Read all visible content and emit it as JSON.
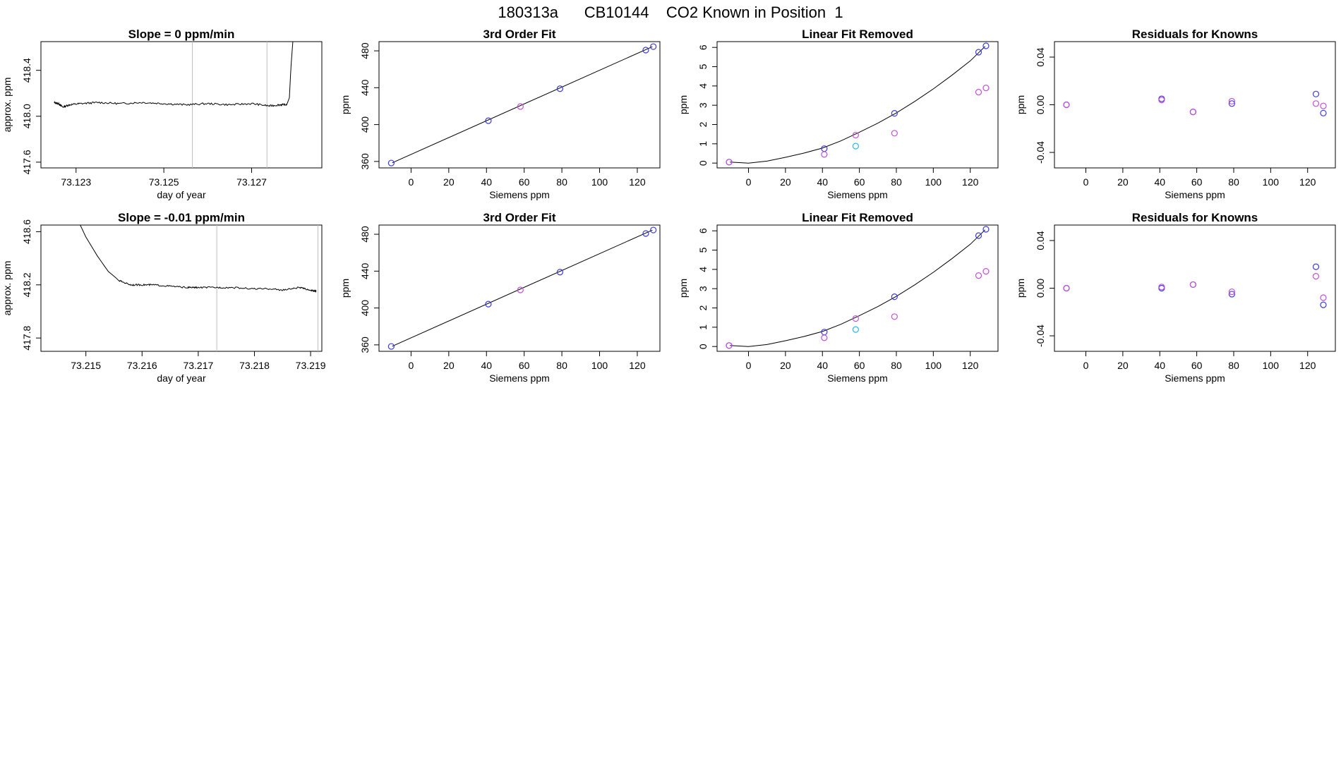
{
  "figure": {
    "title": "180313a      CB10144    CO2 Known in Position  1",
    "colors": {
      "line": "#000000",
      "frame": "#000000",
      "vline": "#bebebe",
      "blue": "#3a3adf",
      "violet": "#c24fd6",
      "cyan": "#2ab6ea"
    }
  },
  "chart_data": [
    {
      "id": "slope-1",
      "type": "line",
      "title": "Slope =  0  ppm/min",
      "xlabel": "day of year",
      "ylabel": "approx. ppm",
      "xlim": [
        73.1222,
        73.1286
      ],
      "ylim": [
        417.55,
        418.65
      ],
      "xticks": [
        73.123,
        73.125,
        73.127
      ],
      "yticks": [
        417.6,
        418.0,
        418.4
      ],
      "vlines": [
        73.12565,
        73.12735
      ],
      "series": [
        {
          "name": "analyzer signal",
          "x": [
            73.1225,
            73.1226,
            73.1227,
            73.12285,
            73.1231,
            73.1235,
            73.124,
            73.1245,
            73.125,
            73.1255,
            73.126,
            73.1265,
            73.127,
            73.1274,
            73.12765,
            73.1278,
            73.12786,
            73.1279,
            73.12795
          ],
          "y": [
            418.12,
            418.11,
            418.08,
            418.1,
            418.11,
            418.12,
            418.11,
            418.12,
            418.11,
            418.1,
            418.11,
            418.1,
            418.11,
            418.09,
            418.1,
            418.1,
            418.16,
            418.45,
            418.7
          ],
          "noise": 0.008
        }
      ]
    },
    {
      "id": "fit-1",
      "type": "scatter",
      "title": "3rd Order Fit",
      "xlabel": "Siemens ppm",
      "ylabel": "ppm",
      "xlim": [
        -17,
        132
      ],
      "ylim": [
        353,
        490
      ],
      "xticks": [
        0,
        20,
        40,
        60,
        80,
        100,
        120
      ],
      "yticks": [
        360,
        400,
        440,
        480
      ],
      "fit_line": {
        "x": [
          -10,
          128
        ],
        "y": [
          358.5,
          484.5
        ]
      },
      "points": [
        {
          "x": -10.5,
          "y": 358.3,
          "c": "blue"
        },
        {
          "x": 41,
          "y": 404.2,
          "c": "blue"
        },
        {
          "x": 58,
          "y": 419.6,
          "c": "violet"
        },
        {
          "x": 79,
          "y": 438.9,
          "c": "blue"
        },
        {
          "x": 124.5,
          "y": 480.8,
          "c": "blue"
        },
        {
          "x": 128.5,
          "y": 484.6,
          "c": "blue"
        }
      ]
    },
    {
      "id": "linear-1",
      "type": "scatter",
      "title": "Linear Fit Removed",
      "xlabel": "Siemens ppm",
      "ylabel": "ppm",
      "xlim": [
        -17,
        135
      ],
      "ylim": [
        -0.25,
        6.3
      ],
      "xticks": [
        0,
        20,
        40,
        60,
        80,
        100,
        120
      ],
      "yticks": [
        0,
        1,
        2,
        3,
        4,
        5,
        6
      ],
      "curve": {
        "x": [
          -10,
          0,
          10,
          20,
          30,
          40,
          50,
          60,
          70,
          80,
          90,
          100,
          110,
          120,
          128
        ],
        "y": [
          0.05,
          0,
          0.1,
          0.3,
          0.52,
          0.78,
          1.15,
          1.6,
          2.07,
          2.6,
          3.2,
          3.85,
          4.55,
          5.3,
          6.05
        ]
      },
      "points": [
        {
          "x": -10.5,
          "y": 0.05,
          "c": "blue"
        },
        {
          "x": -10.5,
          "y": 0.05,
          "c": "violet"
        },
        {
          "x": 41,
          "y": 0.75,
          "c": "blue"
        },
        {
          "x": 41,
          "y": 0.45,
          "c": "violet"
        },
        {
          "x": 58,
          "y": 1.45,
          "c": "violet"
        },
        {
          "x": 58,
          "y": 0.88,
          "c": "cyan"
        },
        {
          "x": 79,
          "y": 2.58,
          "c": "blue"
        },
        {
          "x": 79,
          "y": 1.55,
          "c": "violet"
        },
        {
          "x": 124.5,
          "y": 5.75,
          "c": "blue"
        },
        {
          "x": 124.5,
          "y": 3.68,
          "c": "violet"
        },
        {
          "x": 128.5,
          "y": 6.08,
          "c": "blue"
        },
        {
          "x": 128.5,
          "y": 3.9,
          "c": "violet"
        }
      ]
    },
    {
      "id": "resid-1",
      "type": "scatter",
      "title": "Residuals for Knowns",
      "xlabel": "Siemens ppm",
      "ylabel": "ppm",
      "xlim": [
        -17,
        135
      ],
      "ylim": [
        -0.053,
        0.053
      ],
      "xticks": [
        0,
        20,
        40,
        60,
        80,
        100,
        120
      ],
      "yticks": [
        -0.04,
        0.0,
        0.04
      ],
      "ytick_labels": [
        "-0.04",
        "0.00",
        "0.04"
      ],
      "points": [
        {
          "x": -10.5,
          "y": 0.0,
          "c": "blue"
        },
        {
          "x": -10.5,
          "y": 0.0,
          "c": "violet"
        },
        {
          "x": 41,
          "y": 0.005,
          "c": "blue"
        },
        {
          "x": 41,
          "y": 0.004,
          "c": "violet"
        },
        {
          "x": 58,
          "y": -0.006,
          "c": "blue"
        },
        {
          "x": 58,
          "y": -0.006,
          "c": "violet"
        },
        {
          "x": 79,
          "y": 0.001,
          "c": "blue"
        },
        {
          "x": 79,
          "y": 0.003,
          "c": "violet"
        },
        {
          "x": 124.5,
          "y": 0.009,
          "c": "blue"
        },
        {
          "x": 124.5,
          "y": 0.001,
          "c": "violet"
        },
        {
          "x": 128.5,
          "y": -0.007,
          "c": "blue"
        },
        {
          "x": 128.5,
          "y": -0.001,
          "c": "violet"
        }
      ]
    },
    {
      "id": "slope-2",
      "type": "line",
      "title": "Slope =  -0.01  ppm/min",
      "xlabel": "day of year",
      "ylabel": "approx. ppm",
      "xlim": [
        73.2142,
        73.2192
      ],
      "ylim": [
        417.7,
        418.65
      ],
      "xticks": [
        73.215,
        73.216,
        73.217,
        73.218,
        73.219
      ],
      "yticks": [
        417.8,
        418.2,
        418.6
      ],
      "vlines": [
        73.21733,
        73.21913
      ],
      "series": [
        {
          "name": "analyzer signal",
          "x": [
            73.2149,
            73.215,
            73.2152,
            73.2154,
            73.2156,
            73.2158,
            73.216,
            73.2162,
            73.2165,
            73.2168,
            73.217,
            73.2173,
            73.2176,
            73.218,
            73.2183,
            73.2185,
            73.2188,
            73.219,
            73.2191
          ],
          "y": [
            418.65,
            418.56,
            418.42,
            418.3,
            418.23,
            418.2,
            418.2,
            418.2,
            418.19,
            418.18,
            418.18,
            418.18,
            418.18,
            418.17,
            418.17,
            418.16,
            418.18,
            418.16,
            418.15
          ],
          "noise": 0.006
        }
      ]
    },
    {
      "id": "fit-2",
      "type": "scatter",
      "title": "3rd Order Fit",
      "xlabel": "Siemens ppm",
      "ylabel": "ppm",
      "xlim": [
        -17,
        132
      ],
      "ylim": [
        353,
        490
      ],
      "xticks": [
        0,
        20,
        40,
        60,
        80,
        100,
        120
      ],
      "yticks": [
        360,
        400,
        440,
        480
      ],
      "fit_line": {
        "x": [
          -10,
          128
        ],
        "y": [
          358.5,
          484.5
        ]
      },
      "points": [
        {
          "x": -10.5,
          "y": 358.3,
          "c": "blue"
        },
        {
          "x": 41,
          "y": 404.2,
          "c": "blue"
        },
        {
          "x": 58,
          "y": 419.6,
          "c": "violet"
        },
        {
          "x": 79,
          "y": 438.9,
          "c": "blue"
        },
        {
          "x": 124.5,
          "y": 480.8,
          "c": "blue"
        },
        {
          "x": 128.5,
          "y": 484.6,
          "c": "blue"
        }
      ]
    },
    {
      "id": "linear-2",
      "type": "scatter",
      "title": "Linear Fit Removed",
      "xlabel": "Siemens ppm",
      "ylabel": "ppm",
      "xlim": [
        -17,
        135
      ],
      "ylim": [
        -0.25,
        6.3
      ],
      "xticks": [
        0,
        20,
        40,
        60,
        80,
        100,
        120
      ],
      "yticks": [
        0,
        1,
        2,
        3,
        4,
        5,
        6
      ],
      "curve": {
        "x": [
          -10,
          0,
          10,
          20,
          30,
          40,
          50,
          60,
          70,
          80,
          90,
          100,
          110,
          120,
          128
        ],
        "y": [
          0.05,
          0,
          0.1,
          0.3,
          0.52,
          0.78,
          1.15,
          1.6,
          2.07,
          2.6,
          3.2,
          3.85,
          4.55,
          5.3,
          6.05
        ]
      },
      "points": [
        {
          "x": -10.5,
          "y": 0.05,
          "c": "blue"
        },
        {
          "x": -10.5,
          "y": 0.05,
          "c": "violet"
        },
        {
          "x": 41,
          "y": 0.75,
          "c": "blue"
        },
        {
          "x": 41,
          "y": 0.45,
          "c": "violet"
        },
        {
          "x": 58,
          "y": 1.45,
          "c": "violet"
        },
        {
          "x": 58,
          "y": 0.88,
          "c": "cyan"
        },
        {
          "x": 79,
          "y": 2.58,
          "c": "blue"
        },
        {
          "x": 79,
          "y": 1.55,
          "c": "violet"
        },
        {
          "x": 124.5,
          "y": 5.75,
          "c": "blue"
        },
        {
          "x": 124.5,
          "y": 3.68,
          "c": "violet"
        },
        {
          "x": 128.5,
          "y": 6.08,
          "c": "blue"
        },
        {
          "x": 128.5,
          "y": 3.9,
          "c": "violet"
        }
      ]
    },
    {
      "id": "resid-2",
      "type": "scatter",
      "title": "Residuals for Knowns",
      "xlabel": "Siemens ppm",
      "ylabel": "ppm",
      "xlim": [
        -17,
        135
      ],
      "ylim": [
        -0.053,
        0.053
      ],
      "xticks": [
        0,
        20,
        40,
        60,
        80,
        100,
        120
      ],
      "yticks": [
        -0.04,
        0.0,
        0.04
      ],
      "ytick_labels": [
        "-0.04",
        "0.00",
        "0.04"
      ],
      "points": [
        {
          "x": -10.5,
          "y": 0.0,
          "c": "blue"
        },
        {
          "x": -10.5,
          "y": 0.0,
          "c": "violet"
        },
        {
          "x": 41,
          "y": 0.0,
          "c": "blue"
        },
        {
          "x": 41,
          "y": 0.001,
          "c": "violet"
        },
        {
          "x": 58,
          "y": 0.003,
          "c": "blue"
        },
        {
          "x": 58,
          "y": 0.003,
          "c": "violet"
        },
        {
          "x": 79,
          "y": -0.005,
          "c": "blue"
        },
        {
          "x": 79,
          "y": -0.003,
          "c": "violet"
        },
        {
          "x": 124.5,
          "y": 0.018,
          "c": "blue"
        },
        {
          "x": 124.5,
          "y": 0.01,
          "c": "violet"
        },
        {
          "x": 128.5,
          "y": -0.014,
          "c": "blue"
        },
        {
          "x": 128.5,
          "y": -0.008,
          "c": "violet"
        }
      ]
    }
  ]
}
